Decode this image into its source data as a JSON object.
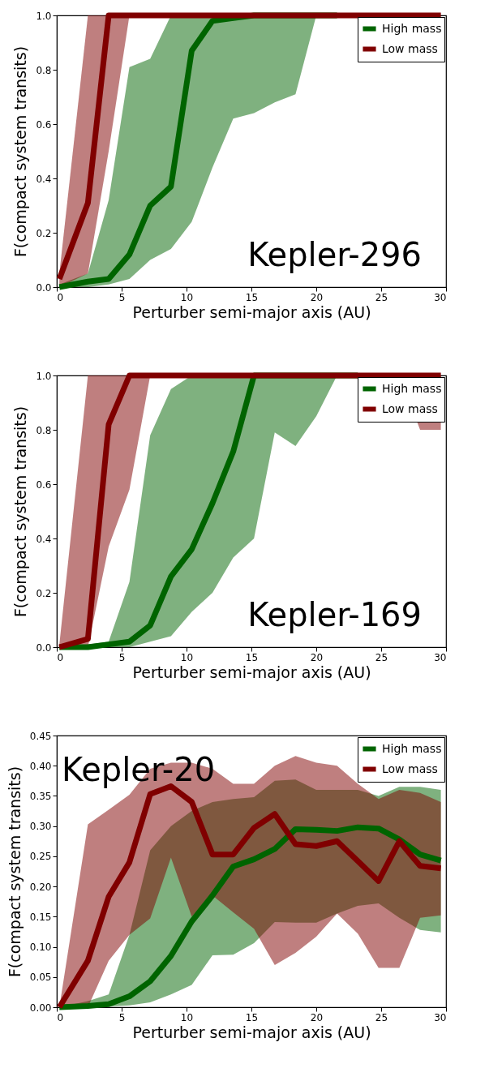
{
  "chart_data": [
    {
      "type": "line",
      "xlabel": "Perturber semi-major axis (AU)",
      "ylabel": "F(compact system transits)",
      "annotations": [
        "Kepler-296"
      ],
      "legend": "top right",
      "grid": false,
      "xlim": [
        0,
        30
      ],
      "xticks": [
        0,
        5,
        10,
        15,
        20,
        25,
        30
      ],
      "ylim": [
        0,
        1
      ],
      "yticks": [
        {
          "value": 0,
          "label": "0.0"
        },
        {
          "value": 0.2,
          "label": "0.2"
        },
        {
          "value": 0.4,
          "label": "0.4"
        },
        {
          "value": 0.6,
          "label": "0.6"
        },
        {
          "value": 0.8,
          "label": "0.8"
        },
        {
          "value": 1,
          "label": "1.0"
        }
      ],
      "x": [
        0.2,
        2.4,
        4.0,
        5.6,
        7.2,
        8.8,
        10.4,
        12.0,
        13.6,
        15.2,
        16.8,
        18.4,
        20.0,
        21.6,
        23.2,
        24.8,
        26.4,
        28.0,
        29.6
      ],
      "series": [
        {
          "name": "High mass",
          "color": "#006400",
          "values": [
            0,
            0.02,
            0.03,
            0.12,
            0.3,
            0.37,
            0.87,
            0.98,
            0.99,
            1,
            1,
            1,
            1,
            1,
            null,
            null,
            null,
            null,
            null
          ],
          "lower": [
            0,
            0,
            0.01,
            0.03,
            0.1,
            0.14,
            0.24,
            0.44,
            0.62,
            0.64,
            0.68,
            0.71,
            1,
            null,
            null,
            null,
            null,
            null,
            null
          ],
          "upper": [
            0.01,
            0.05,
            0.32,
            0.81,
            0.84,
            1,
            1,
            1,
            1,
            1,
            1,
            1,
            1,
            null,
            null,
            null,
            null,
            null,
            null
          ]
        },
        {
          "name": "Low mass",
          "color": "#800000",
          "values": [
            0.03,
            0.31,
            1,
            1,
            1,
            1,
            1,
            1,
            1,
            1,
            1,
            1,
            1,
            1,
            1,
            1,
            1,
            1,
            1
          ],
          "lower": [
            0,
            0.05,
            0.5,
            1,
            null,
            null,
            null,
            null,
            null,
            null,
            null,
            null,
            null,
            null,
            null,
            null,
            null,
            null,
            null
          ],
          "upper": [
            0.05,
            1,
            1,
            1,
            null,
            null,
            null,
            null,
            null,
            null,
            null,
            null,
            null,
            null,
            null,
            null,
            null,
            null,
            null
          ]
        }
      ]
    },
    {
      "type": "line",
      "xlabel": "Perturber semi-major axis (AU)",
      "ylabel": "F(compact system transits)",
      "annotations": [
        "Kepler-169"
      ],
      "legend": "top right",
      "grid": false,
      "xlim": [
        0,
        30
      ],
      "xticks": [
        0,
        5,
        10,
        15,
        20,
        25,
        30
      ],
      "ylim": [
        0,
        1
      ],
      "yticks": [
        {
          "value": 0,
          "label": "0.0"
        },
        {
          "value": 0.2,
          "label": "0.2"
        },
        {
          "value": 0.4,
          "label": "0.4"
        },
        {
          "value": 0.6,
          "label": "0.6"
        },
        {
          "value": 0.8,
          "label": "0.8"
        },
        {
          "value": 1,
          "label": "1.0"
        }
      ],
      "x": [
        0.2,
        2.4,
        4.0,
        5.6,
        7.2,
        8.8,
        10.4,
        12.0,
        13.6,
        15.2,
        16.8,
        18.4,
        20.0,
        21.6,
        23.2,
        24.8,
        26.4,
        28.0,
        29.6
      ],
      "series": [
        {
          "name": "High mass",
          "color": "#006400",
          "values": [
            0,
            0,
            0.01,
            0.02,
            0.08,
            0.26,
            0.36,
            0.53,
            0.72,
            1,
            1,
            1,
            1,
            1,
            1,
            null,
            null,
            null,
            null
          ],
          "lower": [
            0,
            0,
            0,
            0,
            0.02,
            0.04,
            0.13,
            0.2,
            0.33,
            0.4,
            0.79,
            0.74,
            0.85,
            1,
            null,
            null,
            null,
            null,
            null
          ],
          "upper": [
            0,
            0.01,
            0.02,
            0.24,
            0.78,
            0.95,
            1,
            1,
            1,
            1,
            1,
            1,
            1,
            1,
            null,
            null,
            null,
            null,
            null
          ]
        },
        {
          "name": "Low mass",
          "color": "#800000",
          "values": [
            0,
            0.03,
            0.82,
            1,
            1,
            1,
            1,
            1,
            1,
            1,
            1,
            1,
            1,
            1,
            1,
            1,
            1,
            1,
            1
          ],
          "lower": [
            0,
            0,
            0.37,
            0.58,
            1,
            null,
            null,
            null,
            null,
            null,
            null,
            null,
            null,
            null,
            null,
            null,
            1,
            0.8,
            0.8
          ],
          "upper": [
            0.01,
            1,
            1,
            1,
            1,
            null,
            null,
            null,
            null,
            null,
            null,
            null,
            null,
            null,
            null,
            null,
            1,
            1,
            1
          ]
        }
      ]
    },
    {
      "type": "line",
      "xlabel": "Perturber semi-major axis (AU)",
      "ylabel": "F(compact system transits)",
      "annotations": [
        "Kepler-20"
      ],
      "legend": "top right",
      "grid": false,
      "xlim": [
        0,
        30
      ],
      "xticks": [
        0,
        5,
        10,
        15,
        20,
        25,
        30
      ],
      "ylim": [
        0,
        0.45
      ],
      "yticks": [
        {
          "value": 0,
          "label": "0.00"
        },
        {
          "value": 0.05,
          "label": "0.05"
        },
        {
          "value": 0.1,
          "label": "0.10"
        },
        {
          "value": 0.15,
          "label": "0.15"
        },
        {
          "value": 0.2,
          "label": "0.20"
        },
        {
          "value": 0.25,
          "label": "0.25"
        },
        {
          "value": 0.3,
          "label": "0.30"
        },
        {
          "value": 0.35,
          "label": "0.35"
        },
        {
          "value": 0.4,
          "label": "0.40"
        },
        {
          "value": 0.45,
          "label": "0.45"
        }
      ],
      "x": [
        0.2,
        2.4,
        4.0,
        5.6,
        7.2,
        8.8,
        10.4,
        12.0,
        13.6,
        15.2,
        16.8,
        18.4,
        20.0,
        21.6,
        23.2,
        24.8,
        26.4,
        28.0,
        29.6
      ],
      "series": [
        {
          "name": "High mass",
          "color": "#006400",
          "values": [
            0,
            0.002,
            0.005,
            0.018,
            0.043,
            0.085,
            0.142,
            0.185,
            0.233,
            0.245,
            0.262,
            0.295,
            0.294,
            0.292,
            0.298,
            0.296,
            0.278,
            0.253,
            0.243
          ],
          "lower": [
            0,
            0,
            0.001,
            0.003,
            0.008,
            0.021,
            0.037,
            0.086,
            0.087,
            0.106,
            0.141,
            0.14,
            0.14,
            0.155,
            0.168,
            0.172,
            0.148,
            0.128,
            0.124
          ],
          "upper": [
            0,
            0.01,
            0.021,
            0.12,
            0.26,
            0.3,
            0.325,
            0.34,
            0.345,
            0.348,
            0.375,
            0.377,
            0.36,
            0.36,
            0.36,
            0.35,
            0.365,
            0.365,
            0.36
          ]
        },
        {
          "name": "Low mass",
          "color": "#800000",
          "values": [
            0,
            0.077,
            0.183,
            0.24,
            0.353,
            0.366,
            0.34,
            0.253,
            0.253,
            0.297,
            0.32,
            0.27,
            0.267,
            0.275,
            0.242,
            0.209,
            0.275,
            0.234,
            0.23
          ],
          "lower": [
            0,
            0,
            0.077,
            0.12,
            0.147,
            0.248,
            0.15,
            0.185,
            0.157,
            0.13,
            0.07,
            0.09,
            0.117,
            0.155,
            0.122,
            0.065,
            0.065,
            0.148,
            0.152
          ],
          "upper": [
            0,
            0.303,
            0.327,
            0.352,
            0.395,
            0.405,
            0.405,
            0.395,
            0.37,
            0.37,
            0.4,
            0.416,
            0.405,
            0.4,
            0.37,
            0.345,
            0.36,
            0.355,
            0.34
          ]
        }
      ]
    }
  ]
}
